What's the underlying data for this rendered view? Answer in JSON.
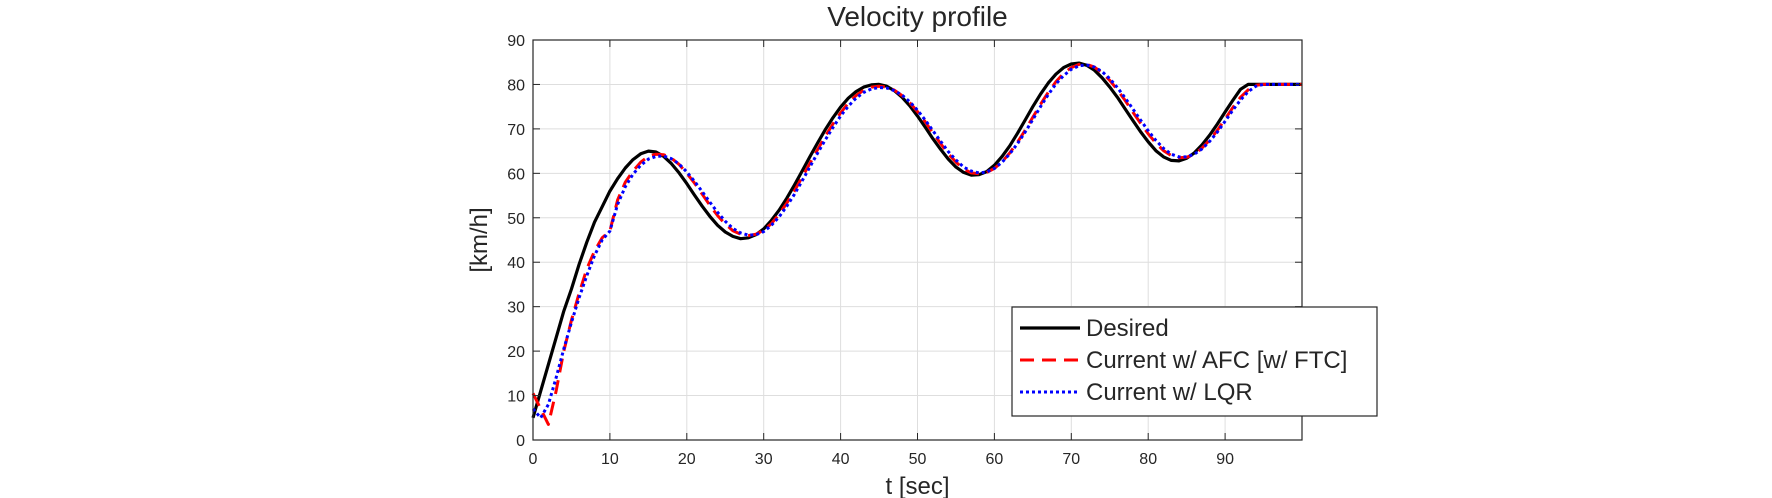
{
  "chart_data": {
    "type": "line",
    "title": "Velocity profile",
    "xlabel": "t [sec]",
    "ylabel": "[km/h]",
    "xlim": [
      0,
      100
    ],
    "ylim": [
      0,
      90
    ],
    "xticks": [
      0,
      10,
      20,
      30,
      40,
      50,
      60,
      70,
      80,
      90
    ],
    "yticks": [
      0,
      10,
      20,
      30,
      40,
      50,
      60,
      70,
      80,
      90
    ],
    "grid": true,
    "legend_position": "bottom-right",
    "series": [
      {
        "name": "Desired",
        "color": "#000000",
        "style": "solid",
        "x": [
          0,
          1,
          2,
          3,
          4,
          5,
          6,
          7,
          8,
          9,
          10,
          11,
          12,
          13,
          14,
          15,
          16,
          17,
          18,
          19,
          20,
          21,
          22,
          23,
          24,
          25,
          26,
          27,
          28,
          29,
          30,
          31,
          32,
          33,
          34,
          35,
          36,
          37,
          38,
          39,
          40,
          41,
          42,
          43,
          44,
          45,
          46,
          47,
          48,
          49,
          50,
          51,
          52,
          53,
          54,
          55,
          56,
          57,
          58,
          59,
          60,
          61,
          62,
          63,
          64,
          65,
          66,
          67,
          68,
          69,
          70,
          71,
          72,
          73,
          74,
          75,
          76,
          77,
          78,
          79,
          80,
          81,
          82,
          83,
          84,
          85,
          86,
          87,
          88,
          89,
          90,
          91,
          92,
          93,
          94,
          95,
          96,
          97,
          98,
          99,
          100
        ],
        "y": [
          5.0,
          11.0,
          17.0,
          23.0,
          29.0,
          34.0,
          39.5,
          44.5,
          49.0,
          52.5,
          56.0,
          58.8,
          61.2,
          63.1,
          64.4,
          65.0,
          64.8,
          63.8,
          62.2,
          60.1,
          57.7,
          55.1,
          52.6,
          50.3,
          48.3,
          46.8,
          45.8,
          45.3,
          45.5,
          46.2,
          47.5,
          49.4,
          51.7,
          54.4,
          57.4,
          60.5,
          63.7,
          66.8,
          69.8,
          72.5,
          74.9,
          76.9,
          78.4,
          79.4,
          79.9,
          80.0,
          79.6,
          78.6,
          77.1,
          75.2,
          72.9,
          70.4,
          67.8,
          65.4,
          63.2,
          61.4,
          60.2,
          59.6,
          59.7,
          60.4,
          61.8,
          63.8,
          66.2,
          69.0,
          72.0,
          75.0,
          77.8,
          80.3,
          82.3,
          83.8,
          84.6,
          84.8,
          84.3,
          83.2,
          81.5,
          79.4,
          77.1,
          74.5,
          71.9,
          69.4,
          67.1,
          65.1,
          63.7,
          62.9,
          62.8,
          63.4,
          64.6,
          66.4,
          68.6,
          71.1,
          73.8,
          76.4,
          78.9,
          80.0,
          80.0,
          80.0,
          80.0,
          80.0,
          80.0,
          80.0,
          80.0
        ]
      },
      {
        "name": "Current w/ AFC [w/ FTC]",
        "color": "#ff0000",
        "style": "dashed",
        "x": [
          0,
          1,
          2,
          3,
          4,
          5,
          6,
          7,
          8,
          9,
          10,
          11,
          12,
          13,
          14,
          15,
          16,
          17,
          18,
          19,
          20,
          21,
          22,
          23,
          24,
          25,
          26,
          27,
          28,
          29,
          30,
          31,
          32,
          33,
          34,
          35,
          36,
          37,
          38,
          39,
          40,
          41,
          42,
          43,
          44,
          45,
          46,
          47,
          48,
          49,
          50,
          51,
          52,
          53,
          54,
          55,
          56,
          57,
          58,
          59,
          60,
          61,
          62,
          63,
          64,
          65,
          66,
          67,
          68,
          69,
          70,
          71,
          72,
          73,
          74,
          75,
          76,
          77,
          78,
          79,
          80,
          81,
          82,
          83,
          84,
          85,
          86,
          87,
          88,
          89,
          90,
          91,
          92,
          93,
          94,
          95,
          96,
          97,
          98,
          99,
          100
        ],
        "y": [
          10.5,
          7.0,
          3.5,
          11.0,
          20.0,
          27.0,
          33.0,
          38.5,
          42.5,
          45.5,
          47.0,
          54.0,
          58.0,
          60.5,
          62.5,
          63.8,
          64.3,
          64.2,
          63.4,
          62.0,
          60.0,
          57.8,
          55.3,
          52.8,
          50.5,
          48.6,
          47.1,
          46.3,
          46.0,
          46.3,
          47.2,
          48.7,
          50.8,
          53.3,
          56.1,
          59.1,
          62.2,
          65.3,
          68.3,
          71.1,
          73.6,
          75.8,
          77.5,
          78.7,
          79.4,
          79.6,
          79.4,
          78.7,
          77.5,
          75.9,
          73.9,
          71.6,
          69.1,
          66.7,
          64.4,
          62.5,
          61.0,
          60.1,
          59.9,
          60.2,
          61.1,
          62.6,
          64.6,
          67.0,
          69.7,
          72.6,
          75.5,
          78.2,
          80.6,
          82.5,
          83.8,
          84.5,
          84.5,
          83.9,
          82.6,
          80.9,
          78.8,
          76.4,
          73.8,
          71.3,
          68.9,
          66.8,
          65.1,
          64.0,
          63.5,
          63.6,
          64.3,
          65.7,
          67.5,
          69.7,
          72.2,
          74.8,
          77.1,
          78.8,
          79.8,
          80.0,
          80.0,
          80.0,
          80.0,
          80.0,
          80.0
        ]
      },
      {
        "name": "Current w/ LQR",
        "color": "#0000ff",
        "style": "dotted",
        "x": [
          0,
          1,
          2,
          3,
          4,
          5,
          6,
          7,
          8,
          9,
          10,
          11,
          12,
          13,
          14,
          15,
          16,
          17,
          18,
          19,
          20,
          21,
          22,
          23,
          24,
          25,
          26,
          27,
          28,
          29,
          30,
          31,
          32,
          33,
          34,
          35,
          36,
          37,
          38,
          39,
          40,
          41,
          42,
          43,
          44,
          45,
          46,
          47,
          48,
          49,
          50,
          51,
          52,
          53,
          54,
          55,
          56,
          57,
          58,
          59,
          60,
          61,
          62,
          63,
          64,
          65,
          66,
          67,
          68,
          69,
          70,
          71,
          72,
          73,
          74,
          75,
          76,
          77,
          78,
          79,
          80,
          81,
          82,
          83,
          84,
          85,
          86,
          87,
          88,
          89,
          90,
          91,
          92,
          93,
          94,
          95,
          96,
          97,
          98,
          99,
          100
        ],
        "y": [
          7.0,
          5.0,
          8.0,
          14.0,
          20.5,
          26.5,
          32.0,
          37.0,
          41.5,
          45.0,
          47.0,
          53.0,
          57.0,
          59.8,
          61.8,
          63.2,
          63.8,
          63.9,
          63.3,
          62.1,
          60.3,
          58.2,
          55.9,
          53.5,
          51.2,
          49.2,
          47.6,
          46.6,
          46.1,
          46.2,
          46.9,
          48.3,
          50.2,
          52.6,
          55.3,
          58.3,
          61.4,
          64.5,
          67.5,
          70.3,
          72.9,
          75.1,
          76.9,
          78.2,
          79.0,
          79.3,
          79.2,
          78.6,
          77.6,
          76.1,
          74.2,
          72.0,
          69.6,
          67.2,
          64.9,
          63.0,
          61.4,
          60.5,
          60.1,
          60.3,
          61.1,
          62.5,
          64.4,
          66.7,
          69.3,
          72.1,
          75.0,
          77.7,
          80.1,
          82.0,
          83.4,
          84.2,
          84.4,
          83.9,
          82.9,
          81.3,
          79.3,
          77.0,
          74.5,
          72.0,
          69.6,
          67.4,
          65.6,
          64.3,
          63.7,
          63.7,
          64.3,
          65.5,
          67.2,
          69.3,
          71.7,
          74.2,
          76.5,
          78.4,
          79.6,
          80.0,
          80.0,
          80.0,
          80.0,
          80.0,
          80.0
        ]
      }
    ]
  }
}
